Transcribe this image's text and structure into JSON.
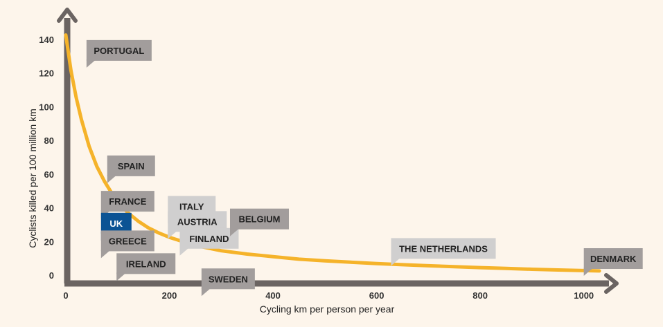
{
  "chart_data": {
    "type": "line",
    "xlabel": "Cycling km per person per year",
    "ylabel": "Cyclists killed per 100 million km",
    "xlim": [
      -20,
      1090
    ],
    "ylim": [
      -4,
      158
    ],
    "x_ticks": [
      0,
      200,
      400,
      600,
      800,
      1000
    ],
    "y_ticks": [
      0,
      20,
      40,
      60,
      80,
      100,
      120,
      140
    ],
    "grid": false,
    "legend": "none",
    "series": [
      {
        "color": "#f5b32a",
        "x": [
          0,
          10,
          20,
          30,
          45,
          60,
          75,
          90,
          105,
          120,
          140,
          160,
          180,
          200,
          230,
          260,
          300,
          350,
          400,
          450,
          500,
          550,
          600,
          650,
          700,
          750,
          800,
          850,
          900,
          950,
          1000,
          1030
        ],
        "y": [
          143,
          122,
          106,
          93,
          77,
          65,
          56,
          48.5,
          42.5,
          37.5,
          32.5,
          28.5,
          25.5,
          23,
          20,
          17.5,
          15,
          13,
          11.5,
          10,
          9,
          8.2,
          7.4,
          6.7,
          6.1,
          5.5,
          5,
          4.5,
          4,
          3.6,
          3.2,
          3
        ]
      }
    ],
    "annotations": [
      {
        "text": "PORTUGAL",
        "x": 40,
        "y": 140,
        "style": "grey"
      },
      {
        "text": "SPAIN",
        "x": 80,
        "y": 71.5,
        "style": "grey"
      },
      {
        "text": "FRANCE",
        "x": 68,
        "y": 50.5,
        "style": "grey"
      },
      {
        "text": "UK",
        "x": 68,
        "y": 37.5,
        "style": "blue"
      },
      {
        "text": "GREECE",
        "x": 68,
        "y": 27,
        "style": "grey"
      },
      {
        "text": "IRELAND",
        "x": 98,
        "y": 13.5,
        "style": "grey"
      },
      {
        "text": "ITALY",
        "x": 197,
        "y": 47.5,
        "style": "light"
      },
      {
        "text": "AUSTRIA",
        "x": 197,
        "y": 38.5,
        "style": "light"
      },
      {
        "text": "FINLAND",
        "x": 220,
        "y": 28.5,
        "style": "light"
      },
      {
        "text": "BELGIUM",
        "x": 317,
        "y": 40,
        "style": "grey"
      },
      {
        "text": "SWEDEN",
        "x": 262,
        "y": 4.5,
        "style": "grey"
      },
      {
        "text": "THE NETHERLANDS",
        "x": 628,
        "y": 22.5,
        "style": "light"
      },
      {
        "text": "DENMARK",
        "x": 1000,
        "y": 16.5,
        "style": "grey"
      }
    ]
  },
  "colors": {
    "background": "#fdf5eb",
    "axis": "#6b6462",
    "curve": "#f5b32a",
    "label_grey": "#a29d9c",
    "label_light": "#d0cfcf",
    "label_blue": "#0b5394"
  }
}
